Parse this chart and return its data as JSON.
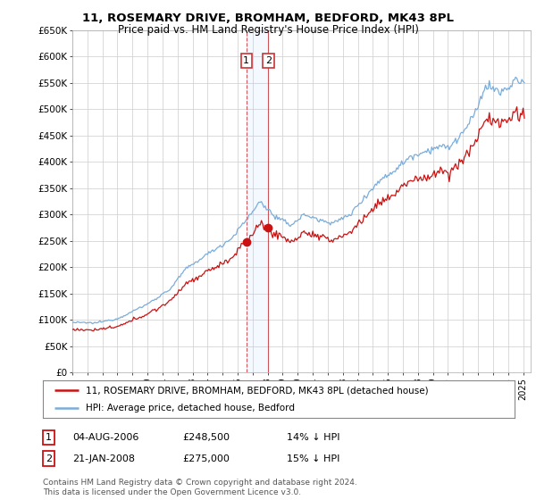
{
  "title": "11, ROSEMARY DRIVE, BROMHAM, BEDFORD, MK43 8PL",
  "subtitle": "Price paid vs. HM Land Registry's House Price Index (HPI)",
  "ylabel_ticks": [
    "£0",
    "£50K",
    "£100K",
    "£150K",
    "£200K",
    "£250K",
    "£300K",
    "£350K",
    "£400K",
    "£450K",
    "£500K",
    "£550K",
    "£600K",
    "£650K"
  ],
  "ytick_vals": [
    0,
    50000,
    100000,
    150000,
    200000,
    250000,
    300000,
    350000,
    400000,
    450000,
    500000,
    550000,
    600000,
    650000
  ],
  "hpi_color": "#7aaddc",
  "price_color": "#cc1111",
  "sale1_year": 2006.583,
  "sale1_price": 248500,
  "sale2_year": 2008.05,
  "sale2_price": 275000,
  "legend_line1": "11, ROSEMARY DRIVE, BROMHAM, BEDFORD, MK43 8PL (detached house)",
  "legend_line2": "HPI: Average price, detached house, Bedford",
  "footer": "Contains HM Land Registry data © Crown copyright and database right 2024.\nThis data is licensed under the Open Government Licence v3.0.",
  "background_color": "#ffffff",
  "grid_color": "#cccccc",
  "xlim_start": 1995.0,
  "xlim_end": 2025.5,
  "ylim_bottom": 0,
  "ylim_top": 650000,
  "hpi_discount": 0.85,
  "hpi_anchors": {
    "1995.0": 95000,
    "1996.5": 94000,
    "1998.0": 102000,
    "2000.0": 130000,
    "2001.5": 158000,
    "2002.5": 195000,
    "2004.0": 225000,
    "2005.5": 252000,
    "2006.6": 290000,
    "2007.5": 325000,
    "2008.5": 295000,
    "2009.5": 280000,
    "2010.5": 300000,
    "2011.5": 288000,
    "2012.5": 285000,
    "2013.5": 300000,
    "2014.5": 335000,
    "2015.5": 365000,
    "2016.5": 385000,
    "2017.5": 410000,
    "2018.5": 420000,
    "2019.5": 430000,
    "2020.0": 425000,
    "2021.0": 455000,
    "2021.8": 490000,
    "2022.5": 545000,
    "2023.0": 540000,
    "2023.5": 530000,
    "2024.0": 540000,
    "2024.5": 555000,
    "2025.0": 550000
  }
}
